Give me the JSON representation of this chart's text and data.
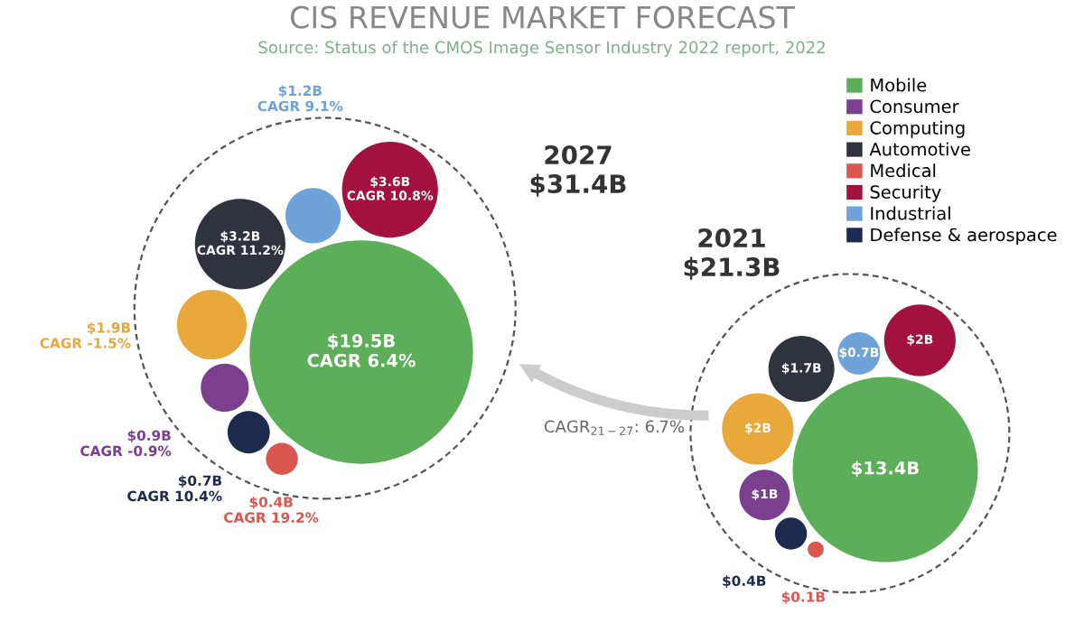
{
  "chart_data": {
    "type": "other",
    "title": "CIS REVENUE MARKET FORECAST",
    "annotations": [
      "Source: Status of the CMOS Image Sensor Industry 2022 report, 2022",
      "$31.4B",
      "$21.3B",
      "CAGR$_{21−27}$: 6.7%",
      "CAGR 6.4%",
      "CAGR -0.9%",
      "CAGR -1.5%",
      "CAGR 11.2%",
      "CAGR 19.2%",
      "CAGR 10.8%",
      "CAGR 9.1%",
      "CAGR 10.4%"
    ],
    "categories": [
      "2027",
      "2021"
    ],
    "legend": "top right",
    "series": [
      {
        "name": "Mobile",
        "color": "#5cae58",
        "values": [
          19.5,
          13.4
        ],
        "value_labels": [
          "$19.5B",
          "$13.4B"
        ]
      },
      {
        "name": "Consumer",
        "color": "#7b3f8f",
        "values": [
          0.9,
          1
        ],
        "value_labels": [
          "$0.9B",
          "$1B"
        ]
      },
      {
        "name": "Computing",
        "color": "#e8a93a",
        "values": [
          1.9,
          2
        ],
        "value_labels": [
          "$1.9B",
          "$2B"
        ]
      },
      {
        "name": "Automotive",
        "color": "#2f333d",
        "values": [
          3.2,
          1.7
        ],
        "value_labels": [
          "$3.2B",
          "$1.7B"
        ]
      },
      {
        "name": "Medical",
        "color": "#d9574f",
        "values": [
          0.4,
          0.1
        ],
        "value_labels": [
          "$0.4B",
          "$0.1B"
        ]
      },
      {
        "name": "Security",
        "color": "#a3123f",
        "values": [
          3.6,
          2
        ],
        "value_labels": [
          "$3.6B",
          "$2B"
        ]
      },
      {
        "name": "Industrial",
        "color": "#6fa2d8",
        "values": [
          1.2,
          0.7
        ],
        "value_labels": [
          "$1.2B",
          "$0.7B"
        ]
      },
      {
        "name": "Defense & aerospace",
        "color": "#1f2a4f",
        "values": [
          0.7,
          0.4
        ],
        "value_labels": [
          "$0.7B",
          "$0.4B"
        ]
      }
    ]
  }
}
